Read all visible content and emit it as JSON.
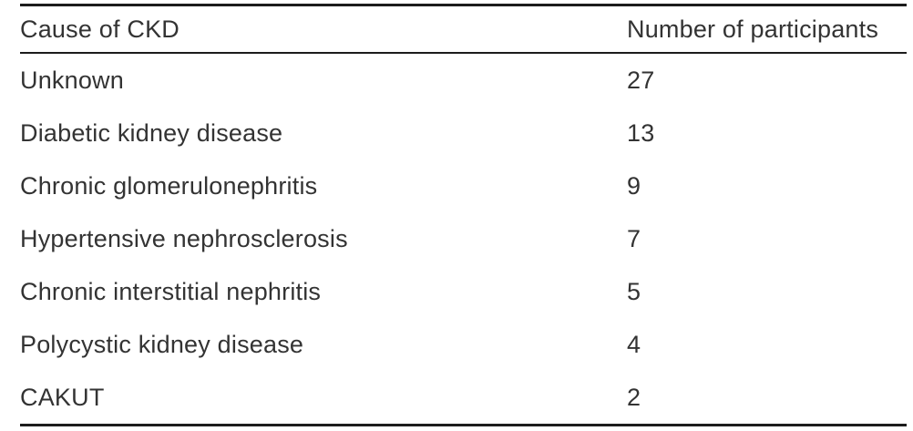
{
  "table": {
    "columns": [
      {
        "label": "Cause of CKD"
      },
      {
        "label": "Number of participants"
      }
    ],
    "rows": [
      {
        "cause": "Unknown",
        "participants": "27"
      },
      {
        "cause": "Diabetic kidney disease",
        "participants": "13"
      },
      {
        "cause": "Chronic glomerulonephritis",
        "participants": "9"
      },
      {
        "cause": "Hypertensive nephrosclerosis",
        "participants": "7"
      },
      {
        "cause": "Chronic interstitial nephritis",
        "participants": "5"
      },
      {
        "cause": "Polycystic kidney disease",
        "participants": "4"
      },
      {
        "cause": "CAKUT",
        "participants": "2"
      }
    ]
  },
  "colors": {
    "text": "#333333",
    "rule": "#1c1c1c",
    "background": "#ffffff"
  }
}
